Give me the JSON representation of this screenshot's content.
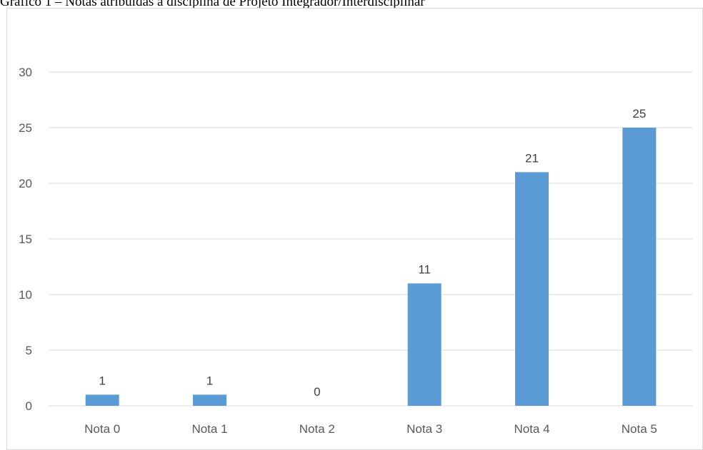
{
  "caption": "Gráfico 1 – Notas atribuídas à disciplina de Projeto Integrador/Interdisciplinar",
  "colors": {
    "bar": "#5b9bd5",
    "grid": "#d9d9d9",
    "axis_text": "#595959"
  },
  "chart_data": {
    "type": "bar",
    "title": "",
    "xlabel": "",
    "ylabel": "",
    "categories": [
      "Nota 0",
      "Nota 1",
      "Nota 2",
      "Nota 3",
      "Nota 4",
      "Nota 5"
    ],
    "values": [
      1,
      1,
      0,
      11,
      21,
      25
    ],
    "data_labels": [
      "1",
      "1",
      "0",
      "11",
      "21",
      "25"
    ],
    "ylim": [
      0,
      30
    ],
    "yticks": [
      0,
      5,
      10,
      15,
      20,
      25,
      30
    ],
    "grid": true,
    "legend": "none"
  }
}
